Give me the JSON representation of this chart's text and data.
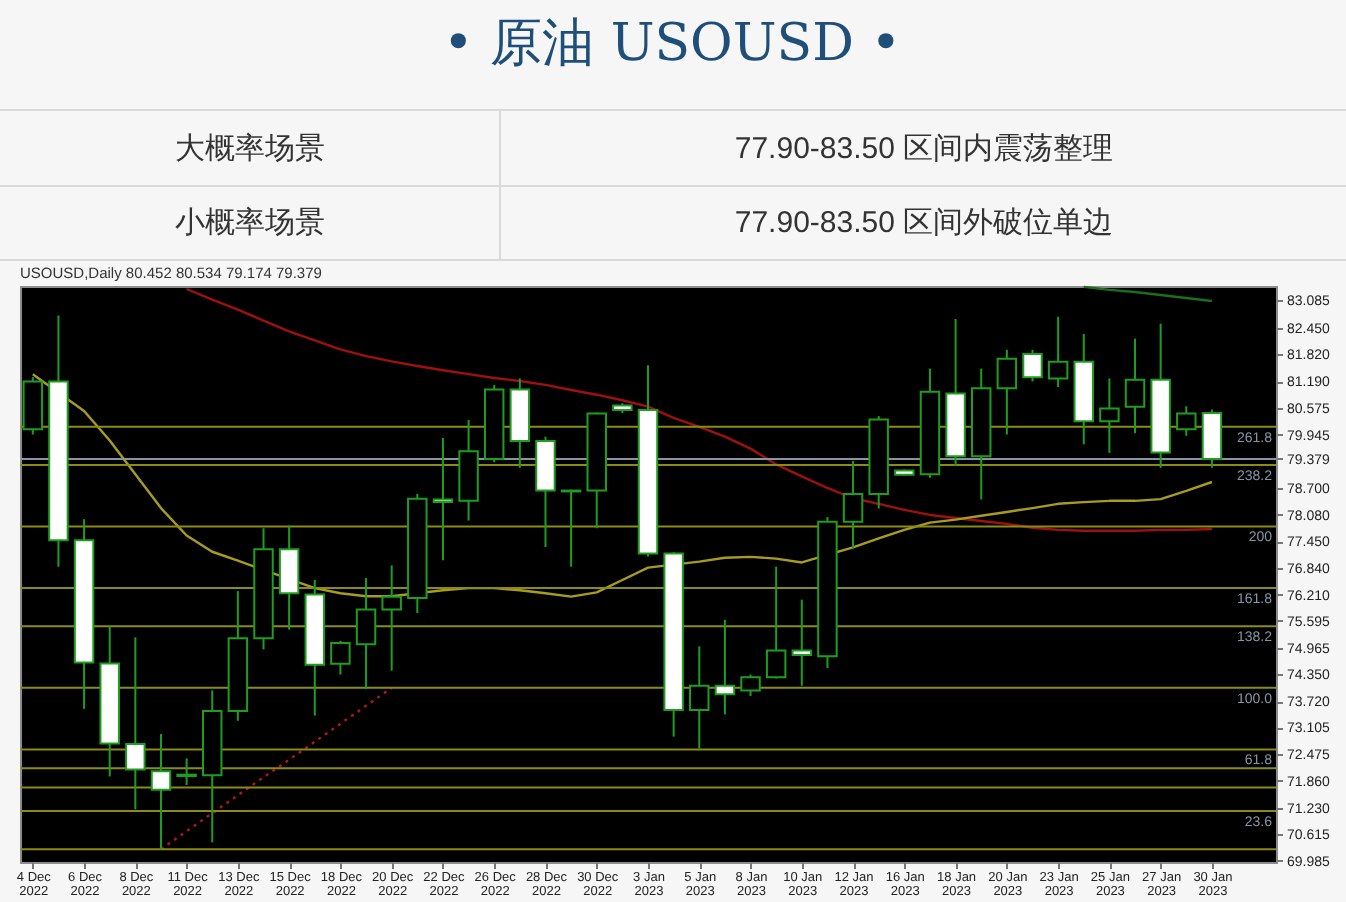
{
  "chart_data": {
    "type": "candlestick",
    "title": "• 原油 USOUSD •",
    "annotations": [
      "大概率场景",
      "77.90-83.50 区间内震荡整理",
      "小概率场景",
      "77.90-83.50 区间外破位单边",
      "USOUSD,Daily 80.452 80.534 79.174 79.379",
      {
        "text": "261.8",
        "y": 80.13
      },
      {
        "text": "238.2",
        "y": 79.24
      },
      {
        "text": "200",
        "y": 77.8
      },
      {
        "text": "161.8",
        "y": 76.36
      },
      {
        "text": "138.2",
        "y": 75.47
      },
      {
        "text": "100.0",
        "y": 74.03
      },
      {
        "text": "61.8",
        "y": 72.59
      },
      {
        "text": "23.6",
        "y": 71.15
      }
    ],
    "categories": [
      "4 Dec 2022",
      null,
      "6 Dec 2022",
      null,
      "8 Dec 2022",
      null,
      "11 Dec 2022",
      null,
      "13 Dec 2022",
      null,
      "15 Dec 2022",
      null,
      "18 Dec 2022",
      null,
      "20 Dec 2022",
      null,
      "22 Dec 2022",
      null,
      "26 Dec 2022",
      null,
      "28 Dec 2022",
      null,
      "30 Dec 2022",
      null,
      "3 Jan 2023",
      null,
      "5 Jan 2023",
      null,
      "8 Jan 2023",
      null,
      "10 Jan 2023",
      null,
      "12 Jan 2023",
      null,
      "16 Jan 2023",
      null,
      "18 Jan 2023",
      null,
      "20 Jan 2023",
      null,
      "23 Jan 2023",
      null,
      "25 Jan 2023",
      null,
      "27 Jan 2023",
      null,
      "30 Jan 2023"
    ],
    "ohlc": [
      [
        80.07,
        81.29,
        79.95,
        81.19
      ],
      [
        81.19,
        82.73,
        76.86,
        77.48
      ],
      [
        77.48,
        77.97,
        73.54,
        74.62
      ],
      [
        74.6,
        75.47,
        71.96,
        72.73
      ],
      [
        72.72,
        75.21,
        71.19,
        72.12
      ],
      [
        72.08,
        72.95,
        70.26,
        71.65
      ],
      [
        71.97,
        72.38,
        71.76,
        72.0
      ],
      [
        71.99,
        73.97,
        70.42,
        73.49
      ],
      [
        73.49,
        76.29,
        73.26,
        75.19
      ],
      [
        75.19,
        77.76,
        74.93,
        77.27
      ],
      [
        77.27,
        77.82,
        75.39,
        76.24
      ],
      [
        76.21,
        76.55,
        73.38,
        74.57
      ],
      [
        74.59,
        75.13,
        74.34,
        75.08
      ],
      [
        75.05,
        76.6,
        74.0,
        75.86
      ],
      [
        75.86,
        76.89,
        74.43,
        76.16
      ],
      [
        76.13,
        78.56,
        75.78,
        78.45
      ],
      [
        78.43,
        79.87,
        77.01,
        78.37
      ],
      [
        78.4,
        80.29,
        77.94,
        79.56
      ],
      [
        79.38,
        81.11,
        79.3,
        81.0
      ],
      [
        81.0,
        81.26,
        79.17,
        79.8
      ],
      [
        79.8,
        79.9,
        77.32,
        78.64
      ],
      [
        78.62,
        78.66,
        76.86,
        78.64
      ],
      [
        78.64,
        80.46,
        77.76,
        80.44
      ],
      [
        80.63,
        80.68,
        80.45,
        80.52
      ],
      [
        80.52,
        81.57,
        77.1,
        77.17
      ],
      [
        77.17,
        77.2,
        72.89,
        73.51
      ],
      [
        73.51,
        75.0,
        72.61,
        74.08
      ],
      [
        74.08,
        75.62,
        73.41,
        73.88
      ],
      [
        73.97,
        74.34,
        73.84,
        74.28
      ],
      [
        74.28,
        76.86,
        74.25,
        74.9
      ],
      [
        74.9,
        76.09,
        74.08,
        74.8
      ],
      [
        74.77,
        78.02,
        74.49,
        77.91
      ],
      [
        77.91,
        79.33,
        77.29,
        78.56
      ],
      [
        78.56,
        80.38,
        78.22,
        80.3
      ],
      [
        79.11,
        79.13,
        78.99,
        79.01
      ],
      [
        79.02,
        81.49,
        78.94,
        80.95
      ],
      [
        80.91,
        82.65,
        79.21,
        79.44
      ],
      [
        79.44,
        81.49,
        78.43,
        81.03
      ],
      [
        81.03,
        81.93,
        79.95,
        81.72
      ],
      [
        81.83,
        81.93,
        81.19,
        81.29
      ],
      [
        81.26,
        82.7,
        81.06,
        81.65
      ],
      [
        81.65,
        82.3,
        79.72,
        80.26
      ],
      [
        80.26,
        81.26,
        79.52,
        80.56
      ],
      [
        80.6,
        82.19,
        79.98,
        81.23
      ],
      [
        81.23,
        82.54,
        79.17,
        79.53
      ],
      [
        80.07,
        80.61,
        79.92,
        80.44
      ],
      [
        80.452,
        80.534,
        79.174,
        79.379
      ]
    ],
    "color": "#1e9e1e",
    "colors": [
      "#000000",
      "#ffffff",
      "#ffffff",
      "#ffffff",
      "#ffffff",
      "#ffffff",
      "#000000",
      "#000000",
      "#000000",
      "#000000",
      "#ffffff",
      "#ffffff",
      "#000000",
      "#000000",
      "#000000",
      "#000000",
      "#ffffff",
      "#000000",
      "#000000",
      "#ffffff",
      "#ffffff",
      "#000000",
      "#000000",
      "#ffffff",
      "#ffffff",
      "#ffffff",
      "#000000",
      "#ffffff",
      "#000000",
      "#000000",
      "#ffffff",
      "#000000",
      "#000000",
      "#000000",
      "#ffffff",
      "#000000",
      "#ffffff",
      "#000000",
      "#000000",
      "#ffffff",
      "#000000",
      "#ffffff",
      "#000000",
      "#000000",
      "#ffffff",
      "#000000",
      "#ffffff"
    ],
    "series": [
      {
        "type": "line",
        "color": "#a01010",
        "values": [
          null,
          null,
          null,
          null,
          null,
          null,
          83.35,
          83.1,
          82.87,
          82.61,
          82.36,
          82.15,
          81.94,
          81.78,
          81.66,
          81.55,
          81.45,
          81.36,
          81.27,
          81.2,
          81.11,
          80.99,
          80.88,
          80.75,
          80.6,
          80.34,
          80.13,
          79.9,
          79.62,
          79.25,
          78.97,
          78.7,
          78.46,
          78.33,
          78.19,
          78.07,
          78.0,
          77.93,
          77.86,
          77.77,
          77.72,
          77.7,
          77.7,
          77.7,
          77.72,
          77.72,
          77.74
        ]
      },
      {
        "type": "line",
        "color": "#a89c20",
        "values": [
          81.36,
          null,
          80.5,
          79.81,
          79.02,
          78.23,
          77.59,
          77.21,
          77.0,
          null,
          null,
          76.36,
          76.24,
          76.17,
          76.17,
          null,
          76.31,
          76.36,
          76.36,
          76.31,
          76.24,
          76.16,
          76.26,
          76.55,
          76.84,
          null,
          76.98,
          77.07,
          77.09,
          77.05,
          76.96,
          null,
          77.31,
          77.52,
          77.72,
          77.89,
          77.96,
          78.05,
          78.14,
          78.23,
          78.33,
          78.37,
          78.4,
          78.4,
          78.44,
          78.63,
          78.84
        ]
      },
      {
        "type": "line",
        "color": "#1c6e1c",
        "values": [
          null,
          null,
          null,
          null,
          null,
          null,
          null,
          null,
          null,
          null,
          null,
          null,
          null,
          null,
          null,
          null,
          null,
          null,
          null,
          null,
          null,
          null,
          null,
          null,
          null,
          null,
          null,
          null,
          null,
          null,
          null,
          null,
          null,
          null,
          null,
          null,
          null,
          null,
          null,
          null,
          null,
          83.4,
          83.33,
          83.28,
          83.21,
          83.14,
          83.07
        ]
      },
      {
        "type": "line",
        "color": "#b01818",
        "line_style": "dotted",
        "values": [
          null,
          null,
          null,
          null,
          null,
          70.26,
          70.68,
          71.1,
          71.52,
          71.94,
          72.35,
          72.77,
          73.19,
          73.61,
          74.03,
          null,
          null,
          null,
          null,
          null,
          null,
          null,
          null,
          null,
          null,
          null,
          null,
          null,
          null,
          null,
          null,
          null,
          null,
          null,
          null,
          null,
          null,
          null,
          null,
          null,
          null,
          null,
          null,
          null,
          null,
          null,
          null
        ]
      }
    ],
    "ylim": [
      69.96,
      83.42
    ],
    "yticks": [
      83.085,
      {
        "value": 82.45,
        "label": "82.450"
      },
      {
        "value": 81.82,
        "label": "81.820"
      },
      {
        "value": 81.19,
        "label": "81.190"
      },
      80.575,
      79.945,
      79.379,
      {
        "value": 78.7,
        "label": "78.700"
      },
      {
        "value": 78.08,
        "label": "78.080"
      },
      {
        "value": 77.45,
        "label": "77.450"
      },
      {
        "value": 76.84,
        "label": "76.840"
      },
      {
        "value": 76.21,
        "label": "76.210"
      },
      75.595,
      74.965,
      {
        "value": 74.35,
        "label": "74.350"
      },
      {
        "value": 73.72,
        "label": "73.720"
      },
      73.105,
      72.475,
      {
        "value": 71.86,
        "label": "71.860"
      },
      {
        "value": 71.23,
        "label": "71.230"
      },
      70.615,
      69.985
    ],
    "ref_lines": [
      {
        "axis": "y",
        "value": 79.379,
        "color": "#8796a5"
      },
      {
        "axis": "y",
        "value": 80.13,
        "color": "#8c8c14"
      },
      {
        "axis": "y",
        "value": 79.24,
        "color": "#8c8c14"
      },
      {
        "axis": "y",
        "value": 77.8,
        "color": "#8c8c14"
      },
      {
        "axis": "y",
        "value": 76.36,
        "color": "#8c8c14"
      },
      {
        "axis": "y",
        "value": 75.47,
        "color": "#8c8c14"
      },
      {
        "axis": "y",
        "value": 74.03,
        "color": "#8c8c14"
      },
      {
        "axis": "y",
        "value": 72.59,
        "color": "#8c8c14"
      },
      {
        "axis": "y",
        "value": 72.15,
        "color": "#8c8c14"
      },
      {
        "axis": "y",
        "value": 71.7,
        "color": "#8c8c14"
      },
      {
        "axis": "y",
        "value": 71.15,
        "color": "#8c8c14"
      },
      {
        "axis": "y",
        "value": 70.26,
        "color": "#8c8c14"
      }
    ]
  }
}
